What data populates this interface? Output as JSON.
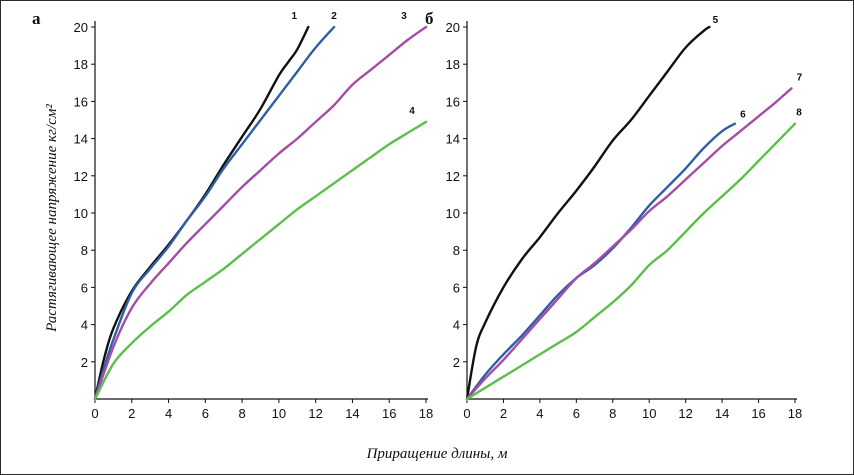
{
  "chart_data": [
    {
      "type": "line",
      "panel_label": "а",
      "xlim": [
        0,
        18
      ],
      "ylim": [
        0,
        20
      ],
      "x_ticks": [
        0,
        2,
        4,
        6,
        8,
        10,
        12,
        14,
        16,
        18
      ],
      "y_ticks": [
        2,
        4,
        6,
        8,
        10,
        12,
        14,
        16,
        18,
        20
      ],
      "grid": false,
      "series": [
        {
          "name": "1",
          "color": "#111111",
          "x": [
            0,
            0.5,
            1,
            2,
            3,
            4,
            5,
            6,
            7,
            8,
            9,
            10,
            10.5,
            11,
            11.6
          ],
          "y": [
            0,
            2.2,
            3.8,
            5.8,
            7.1,
            8.3,
            9.6,
            11,
            12.6,
            14.1,
            15.6,
            17.4,
            18.1,
            18.8,
            20
          ]
        },
        {
          "name": "2",
          "color": "#2e5fa6",
          "x": [
            0,
            0.5,
            1,
            2,
            3,
            4,
            5,
            6,
            7,
            8,
            9,
            10,
            11,
            12,
            13
          ],
          "y": [
            0,
            1.7,
            3.2,
            5.7,
            7.0,
            8.2,
            9.6,
            10.9,
            12.4,
            13.7,
            15.0,
            16.3,
            17.6,
            18.9,
            20
          ]
        },
        {
          "name": "3",
          "color": "#a64ca6",
          "x": [
            0,
            1,
            2,
            3,
            4,
            5,
            6,
            7,
            8,
            9,
            10,
            11,
            12,
            13,
            14,
            15,
            16,
            17,
            18
          ],
          "y": [
            0,
            2.8,
            4.9,
            6.2,
            7.3,
            8.4,
            9.4,
            10.4,
            11.4,
            12.3,
            13.2,
            14.0,
            14.9,
            15.8,
            16.9,
            17.7,
            18.5,
            19.3,
            20
          ]
        },
        {
          "name": "4",
          "color": "#5bbf4a",
          "x": [
            0,
            1,
            2,
            3,
            4,
            5,
            6,
            7,
            8,
            9,
            10,
            11,
            12,
            13,
            14,
            15,
            16,
            17,
            18
          ],
          "y": [
            0,
            1.9,
            3.0,
            3.9,
            4.7,
            5.6,
            6.3,
            7.0,
            7.8,
            8.6,
            9.4,
            10.2,
            10.9,
            11.6,
            12.3,
            13.0,
            13.7,
            14.3,
            14.9
          ]
        }
      ]
    },
    {
      "type": "line",
      "panel_label": "б",
      "xlim": [
        0,
        18
      ],
      "ylim": [
        0,
        20
      ],
      "x_ticks": [
        0,
        2,
        4,
        6,
        8,
        10,
        12,
        14,
        16,
        18
      ],
      "y_ticks": [
        2,
        4,
        6,
        8,
        10,
        12,
        14,
        16,
        18,
        20
      ],
      "grid": false,
      "series": [
        {
          "name": "5",
          "color": "#111111",
          "x": [
            0,
            0.5,
            1,
            2,
            3,
            4,
            5,
            6,
            7,
            8,
            9,
            10,
            11,
            12,
            13,
            13.3
          ],
          "y": [
            0,
            2.8,
            4.1,
            6.0,
            7.5,
            8.7,
            10.0,
            11.2,
            12.5,
            13.9,
            15.0,
            16.3,
            17.6,
            18.9,
            19.8,
            20
          ]
        },
        {
          "name": "6",
          "color": "#2e5fa6",
          "x": [
            0,
            1,
            2,
            3,
            4,
            5,
            6,
            7,
            8,
            9,
            10,
            11,
            12,
            13,
            14,
            14.7
          ],
          "y": [
            0,
            1.3,
            2.4,
            3.4,
            4.5,
            5.6,
            6.5,
            7.2,
            8.1,
            9.2,
            10.4,
            11.4,
            12.4,
            13.5,
            14.4,
            14.8
          ]
        },
        {
          "name": "7",
          "color": "#a64ca6",
          "x": [
            0,
            1,
            2,
            3,
            4,
            5,
            6,
            7,
            8,
            9,
            10,
            11,
            12,
            13,
            14,
            15,
            16,
            17,
            17.8
          ],
          "y": [
            0,
            1.1,
            2.1,
            3.2,
            4.3,
            5.4,
            6.5,
            7.3,
            8.2,
            9.1,
            10.1,
            10.9,
            11.8,
            12.7,
            13.6,
            14.4,
            15.2,
            16.0,
            16.7
          ]
        },
        {
          "name": "8",
          "color": "#5bbf4a",
          "x": [
            0,
            1,
            2,
            3,
            4,
            5,
            6,
            7,
            8,
            9,
            10,
            11,
            12,
            13,
            14,
            15,
            16,
            17,
            18
          ],
          "y": [
            0,
            0.6,
            1.2,
            1.8,
            2.4,
            3.0,
            3.6,
            4.4,
            5.2,
            6.1,
            7.2,
            8.0,
            9.0,
            10.0,
            10.9,
            11.8,
            12.8,
            13.8,
            14.8
          ]
        }
      ]
    }
  ],
  "axes": {
    "y_title": "Растягивающее напряжение кг/см²",
    "x_title": "Приращение длины, м"
  }
}
